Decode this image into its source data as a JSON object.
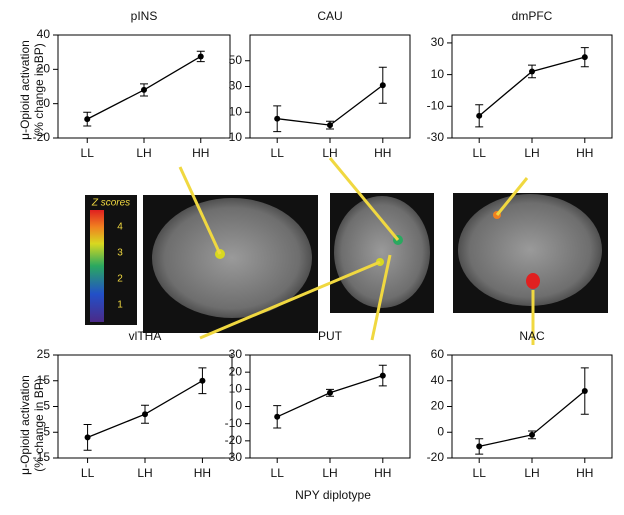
{
  "ylabel_lines": [
    "μ-Opioid activation",
    "(% change in BP)"
  ],
  "xlabel": "NPY diplotype",
  "colorbar": {
    "title": "Z scores",
    "ticks": [
      1,
      2,
      3,
      4
    ]
  },
  "chart_data": [
    {
      "type": "line",
      "title": "pINS",
      "categories": [
        "LL",
        "LH",
        "HH"
      ],
      "values": [
        -9,
        8,
        27.5
      ],
      "errors": [
        4,
        3.5,
        3
      ],
      "ylim": [
        -20,
        40
      ],
      "yticks": [
        -20,
        0,
        20,
        40
      ],
      "color": "#000000"
    },
    {
      "type": "line",
      "title": "CAU",
      "categories": [
        "LL",
        "LH",
        "HH"
      ],
      "values": [
        5,
        0,
        31
      ],
      "errors": [
        10,
        3,
        14
      ],
      "ylim": [
        -10,
        70
      ],
      "yticks": [
        -10,
        10,
        30,
        50
      ],
      "color": "#000000"
    },
    {
      "type": "line",
      "title": "dmPFC",
      "categories": [
        "LL",
        "LH",
        "HH"
      ],
      "values": [
        -16,
        12,
        21
      ],
      "errors": [
        7,
        4,
        6
      ],
      "ylim": [
        -30,
        35
      ],
      "yticks": [
        -30,
        -10,
        10,
        30
      ],
      "color": "#000000"
    },
    {
      "type": "line",
      "title": "vlTHA",
      "categories": [
        "LL",
        "LH",
        "HH"
      ],
      "values": [
        -7,
        2,
        15
      ],
      "errors": [
        5,
        3.5,
        5
      ],
      "ylim": [
        -15,
        25
      ],
      "yticks": [
        -15,
        -5,
        5,
        15,
        25
      ],
      "color": "#000000"
    },
    {
      "type": "line",
      "title": "PUT",
      "categories": [
        "LL",
        "LH",
        "HH"
      ],
      "values": [
        -6,
        8,
        18
      ],
      "errors": [
        6.5,
        2,
        6
      ],
      "ylim": [
        -30,
        30
      ],
      "yticks": [
        -30,
        -20,
        -10,
        0,
        10,
        20,
        30
      ],
      "color": "#000000"
    },
    {
      "type": "line",
      "title": "NAC",
      "categories": [
        "LL",
        "LH",
        "HH"
      ],
      "values": [
        -11,
        -2,
        32
      ],
      "errors": [
        6,
        3,
        18
      ],
      "ylim": [
        -20,
        60
      ],
      "yticks": [
        -20,
        0,
        20,
        40,
        60
      ],
      "color": "#000000"
    }
  ]
}
